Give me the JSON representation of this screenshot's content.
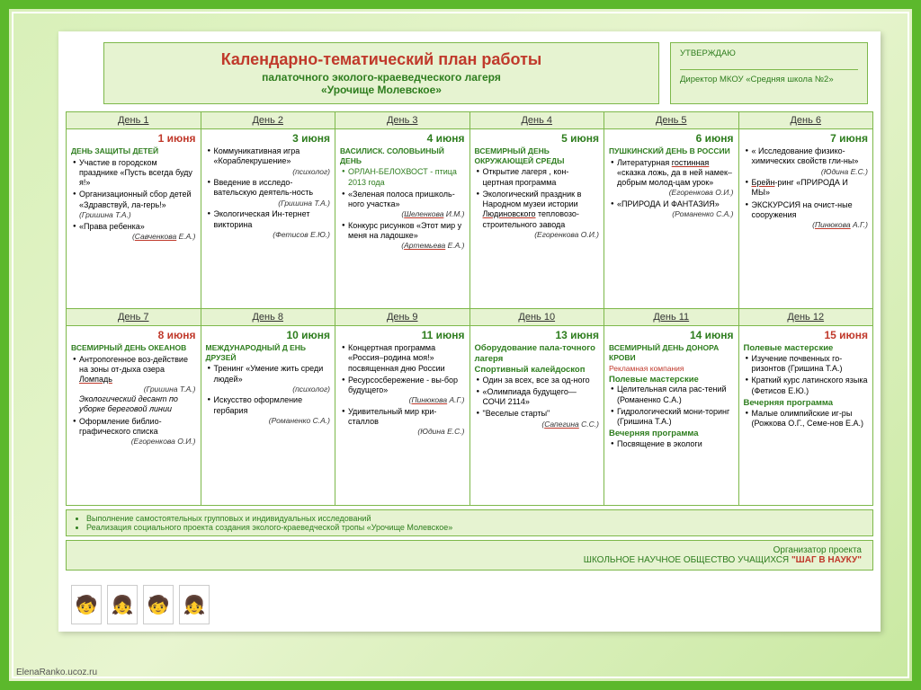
{
  "title": {
    "main": "Календарно-тематический план работы",
    "sub": "палаточного эколого-краеведческого лагеря",
    "name": "«Урочище Молевское»"
  },
  "approve": {
    "h": "УТВЕРЖДАЮ",
    "role": "Директор МКОУ «Средняя школа №2»"
  },
  "day_labels": [
    "День 1",
    "День 2",
    "День 3",
    "День 4",
    "День 5",
    "День 6"
  ],
  "day_labels2": [
    "День 7",
    "День 8",
    "День 9",
    "День 10",
    "День 11",
    "День 12"
  ],
  "row1": [
    {
      "date": "1 июня",
      "dc": "red",
      "theme": "ДЕНЬ ЗАЩИТЫ ДЕТЕЙ",
      "body": "<ul><li>Участие в городском празднике «Пусть всегда буду я!»</li></ul><ul><li>Организационный сбор детей «Здравствуй, ла-герь!» <span class='au'>(Гришина Т.А.)</span></li><li>«Права ребенка»<div class='au'>(<span class='u'>Савченкова</span> Е.А.)</div></li></ul>"
    },
    {
      "date": "3 июня",
      "dc": "grn",
      "theme": "",
      "body": "<ul><li>Коммуникативная игра «Кораблекрушение»<div class='au'>(психолог)</div></li><li>Введение в исследо-вательскую деятель-ность<div class='au'>(Гришина Т.А.)</div></li><li>Экологическая Ин-тернет викторина<div class='au'>(Фетисов Е.Ю.)</div></li></ul>"
    },
    {
      "date": "4 июня",
      "dc": "grn",
      "theme": "ВАСИЛИСК. СОЛОВЬИНЫЙ ДЕНЬ",
      "body": "<ul><li style='color:#2e7d1e'>ОРЛАН-БЕЛОХВОСТ - птица 2013 года</li></ul><ul><li>«Зеленая полоса пришколь-ного участка»<div class='au'>(<span class='u'>Шеленкова</span> И.М.)</div></li><li>Конкурс рисунков «Этот мир у меня на ладошке»<div class='au'>(<span class='u'>Артемьева</span> Е.А.)</div></li></ul>"
    },
    {
      "date": "5 июня",
      "dc": "grn",
      "theme": "ВСЕМИРНЫЙ ДЕНЬ ОКРУЖАЮЩЕЙ СРЕДЫ",
      "body": "<ul><li>Открытие лагеря , кон-цертная программа</li><li>Экологический праздник в Народном музеи истории <span class='u'>Людиновского</span> тепловозо-строительного завода<div class='au'>(Егоренкова О.И.)</div></li></ul>"
    },
    {
      "date": "6 июня",
      "dc": "grn",
      "theme": "ПУШКИНСКИЙ ДЕНЬ В РОССИИ",
      "body": "<ul><li>Литературная <span class='u'>гостинная</span> «сказка ложь, да в ней намек–добрым молод-цам урок»<div class='au'>(Егоренкова О.И.)</div></li><li>«ПРИРОДА И ФАНТАЗИЯ»<div class='au'>(Романенко С.А.)</div></li></ul>"
    },
    {
      "date": "7 июня",
      "dc": "grn",
      "theme": "",
      "body": "<ul><li>« Исследование физико-химических свойств гли-ны»<div class='au'>(Юдина Е.С.)</div></li><li><span class='u'>Брейн</span>-ринг «ПРИРОДА И МЫ»</li><li>ЭКСКУРСИЯ на очист-ные сооружения<div class='au'>(<span class='u'>Пинюкова</span> А.Г.)</div></li></ul>"
    }
  ],
  "row2": [
    {
      "date": "8 июня",
      "dc": "red",
      "theme": "ВСЕМИРНЫЙ ДЕНЬ ОКЕАНОВ",
      "body": "<ul><li>Антропогенное воз-действие на зоны от-дыха озера <span class='u'>Ломпадь</span><div class='au'>(Гришина Т.А.)</div><i>Экологический десант по уборке береговой линии</i></li><li>Оформление библио-графического списка<div class='au'>(Егоренкова О.И.)</div></li></ul>"
    },
    {
      "date": "10 июня",
      "dc": "grn",
      "theme": "МЕЖДУНАРОДНЫЙ Д ЕНЬ ДРУЗЕЙ",
      "body": "<ul><li>Тренинг «Умение жить среди людей»<div class='au'>(психолог)</div></li><li>Искусство оформление гербария<div class='au'>(Романенко С.А.)</div></li></ul>"
    },
    {
      "date": "11 июня",
      "dc": "grn",
      "theme": "",
      "body": "<ul><li>Концертная программа «Россия–родина моя!» посвященная дню России</li><li>Ресурсосбережение - вы-бор будущего»<div class='au'>(<span class='u'>Пинюкова</span> А.Г.)</div></li><li>Удивительный мир кри-сталлов<div class='au'>(Юдина Е.С.)</div></li></ul>"
    },
    {
      "date": "13 июня",
      "dc": "grn",
      "theme": "",
      "body": "<b class='grn'>Оборудование пала-точного лагеря<br>Спортивный калейдоскоп</b><ul><li>Один за всех, все за од-ного</li><li>«Олимпиада будущего—СОЧИ 2114»</li><li>\"Веселые старты\"<div class='au'>(<span class='u'>Сапегина</span> С.С.)</div></li></ul>"
    },
    {
      "date": "14 июня",
      "dc": "grn",
      "theme": "ВСЕМИРНЫЙ ДЕНЬ ДОНОРА КРОВИ",
      "body": "<span style='color:#c0392b;font-size:8.5px'>Рекламная компания</span><br><b class='grn'>Полевые мастерские</b><ul><li>Целительная сила рас-тений (Романенко С.А.)</li><li>Гидрологический мони-торинг (Гришина Т.А.)</li></ul><b class='grn'>Вечерняя программа</b><ul><li>Посвящение в экологи</li></ul>"
    },
    {
      "date": "15 июня",
      "dc": "red",
      "theme": "",
      "body": "<b class='grn'>Полевые мастерские</b><ul><li>Изучение почвенных го-ризонтов (Гришина Т.А.)</li><li>Краткий курс латинского языка (Фетисов Е.Ю.)</li></ul><b class='grn'>Вечерняя программа</b><ul><li>Малые олимпийские иг-ры (Рожкова О.Г., Семе-нов Е.А.)</li></ul>"
    }
  ],
  "notes": [
    "Выполнение самостоятельных групповых и индивидуальных исследований",
    "Реализация социального проекта создания эколого-краеведческой тропы «Урочище Молевское»"
  ],
  "footer": {
    "l1": "Организатор проекта",
    "l2": "ШКОЛЬНОЕ НАУЧНОЕ ОБЩЕСТВО УЧАЩИХСЯ",
    "l3": "\"ШАГ В НАУКУ\""
  },
  "credit": "ElenaRanko.ucoz.ru",
  "colors": {
    "frame": "#5cb82c",
    "cell_border": "#7db84a",
    "hdr_bg": "#e6f3d1",
    "red": "#c0392b",
    "green": "#2e7d1e"
  }
}
